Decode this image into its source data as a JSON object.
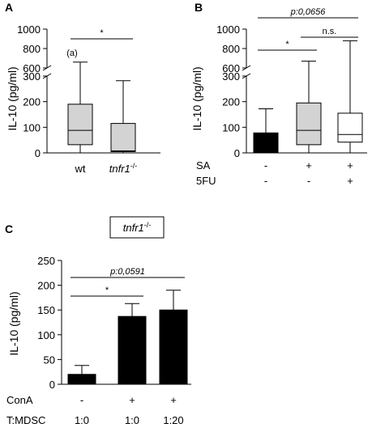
{
  "chart_data": [
    {
      "panel": "A",
      "type": "boxplot",
      "ylabel": "IL-10 (pg/ml)",
      "y_axis": {
        "broken": true,
        "lower_range": [
          0,
          300
        ],
        "lower_ticks": [
          "0",
          "100",
          "200",
          "300"
        ],
        "upper_range": [
          600,
          1000
        ],
        "upper_ticks": [
          "600",
          "800",
          "1000"
        ]
      },
      "groups": [
        {
          "label": "wt",
          "italic": false,
          "superscript": "",
          "fill": "#d3d3d3",
          "min": 0,
          "q1": 32,
          "median": 88,
          "q3": 190,
          "max": 660,
          "note": "(a)"
        },
        {
          "label": "tnfr1",
          "italic": true,
          "superscript": "-/-",
          "fill": "#d3d3d3",
          "min": 0,
          "q1": 5,
          "median": 8,
          "q3": 115,
          "max": 282,
          "note": ""
        }
      ],
      "comparisons": [
        {
          "from": 0,
          "to": 1,
          "label": "*"
        }
      ]
    },
    {
      "panel": "B",
      "type": "boxplot",
      "ylabel": "IL-10 (pg/ml)",
      "y_axis": {
        "broken": true,
        "lower_range": [
          0,
          300
        ],
        "lower_ticks": [
          "0",
          "100",
          "200",
          "300"
        ],
        "upper_range": [
          600,
          1000
        ],
        "upper_ticks": [
          "600",
          "800",
          "1000"
        ]
      },
      "groups": [
        {
          "kind": "bar",
          "fill": "#000000",
          "value": 78,
          "error": 172
        },
        {
          "kind": "box",
          "fill": "#d3d3d3",
          "min": 0,
          "q1": 32,
          "median": 88,
          "q3": 195,
          "max": 670
        },
        {
          "kind": "box",
          "fill": "#ffffff",
          "min": 0,
          "q1": 42,
          "median": 72,
          "q3": 155,
          "max": 880
        }
      ],
      "condition_rows": [
        {
          "name": "SA",
          "values": [
            "-",
            "+",
            "+"
          ]
        },
        {
          "name": "5FU",
          "values": [
            "-",
            "-",
            "+"
          ]
        }
      ],
      "comparisons": [
        {
          "from": 0,
          "to": 1,
          "label": "*"
        },
        {
          "from": 1,
          "to": 2,
          "label": "n.s."
        },
        {
          "from": 0,
          "to": 2,
          "label": "p:0,0656"
        }
      ]
    },
    {
      "panel": "C",
      "type": "bar",
      "title_box": {
        "text": "tnfr1",
        "superscript": "-/-"
      },
      "ylabel": "IL-10 (pg/ml)",
      "ylim": [
        0,
        250
      ],
      "yticks": [
        "0",
        "50",
        "100",
        "150",
        "200",
        "250"
      ],
      "values": [
        20,
        137,
        150
      ],
      "errors": [
        38,
        163,
        190
      ],
      "fill": "#000000",
      "condition_rows": [
        {
          "name": "ConA",
          "values": [
            "-",
            "+",
            "+"
          ]
        },
        {
          "name": "T:MDSC",
          "values": [
            "1:0",
            "1:0",
            "1:20"
          ]
        }
      ],
      "comparisons": [
        {
          "from": 0,
          "to": 1,
          "label": "*"
        },
        {
          "from": 0,
          "to": 2,
          "label": "p:0,0591"
        }
      ]
    }
  ]
}
